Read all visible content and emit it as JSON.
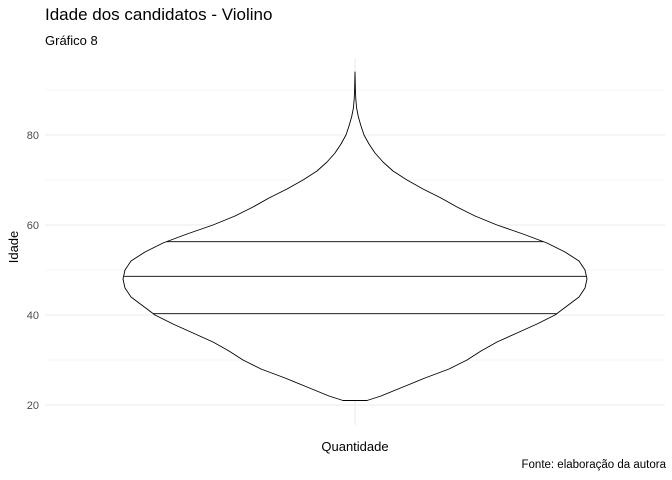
{
  "chart_data": {
    "type": "violin",
    "title": "Idade dos candidatos - Violino",
    "subtitle": "Gráfico 8",
    "caption": "Fonte: elaboração da autora",
    "xlabel": "Quantidade",
    "ylabel": "Idade",
    "ylim": [
      12,
      100
    ],
    "y_ticks": [
      20,
      40,
      60,
      80
    ],
    "y_minor_ticks": [
      30,
      50,
      70,
      90
    ],
    "grid": true,
    "quantiles": [
      {
        "name": "q25",
        "value": 40.3
      },
      {
        "name": "median",
        "value": 48.6
      },
      {
        "name": "q75",
        "value": 56.3
      }
    ],
    "density_profile": [
      {
        "y": 21.0,
        "w": 0.06
      },
      {
        "y": 22.0,
        "w": 0.13
      },
      {
        "y": 24.0,
        "w": 0.24
      },
      {
        "y": 26.0,
        "w": 0.35
      },
      {
        "y": 28.0,
        "w": 0.47
      },
      {
        "y": 30.0,
        "w": 0.56
      },
      {
        "y": 32.0,
        "w": 0.63
      },
      {
        "y": 34.0,
        "w": 0.71
      },
      {
        "y": 36.0,
        "w": 0.81
      },
      {
        "y": 38.0,
        "w": 0.91
      },
      {
        "y": 40.0,
        "w": 1.0
      },
      {
        "y": 42.0,
        "w": 1.06
      },
      {
        "y": 44.0,
        "w": 1.12
      },
      {
        "y": 46.0,
        "w": 1.15
      },
      {
        "y": 48.0,
        "w": 1.16
      },
      {
        "y": 50.0,
        "w": 1.15
      },
      {
        "y": 52.0,
        "w": 1.12
      },
      {
        "y": 54.0,
        "w": 1.05
      },
      {
        "y": 56.0,
        "w": 0.96
      },
      {
        "y": 58.0,
        "w": 0.84
      },
      {
        "y": 60.0,
        "w": 0.71
      },
      {
        "y": 62.0,
        "w": 0.6
      },
      {
        "y": 64.0,
        "w": 0.51
      },
      {
        "y": 66.0,
        "w": 0.43
      },
      {
        "y": 68.0,
        "w": 0.34
      },
      {
        "y": 70.0,
        "w": 0.26
      },
      {
        "y": 72.0,
        "w": 0.19
      },
      {
        "y": 74.0,
        "w": 0.14
      },
      {
        "y": 76.0,
        "w": 0.1
      },
      {
        "y": 78.0,
        "w": 0.07
      },
      {
        "y": 80.0,
        "w": 0.045
      },
      {
        "y": 82.0,
        "w": 0.03
      },
      {
        "y": 84.0,
        "w": 0.017
      },
      {
        "y": 86.0,
        "w": 0.008
      },
      {
        "y": 88.0,
        "w": 0.004
      },
      {
        "y": 90.0,
        "w": 0.002
      },
      {
        "y": 94.0,
        "w": 0.0
      }
    ],
    "colors": {
      "outline": "#000000",
      "fill": "#ffffff",
      "grid": "#ebebeb",
      "tick_text": "#4d4d4d"
    }
  }
}
